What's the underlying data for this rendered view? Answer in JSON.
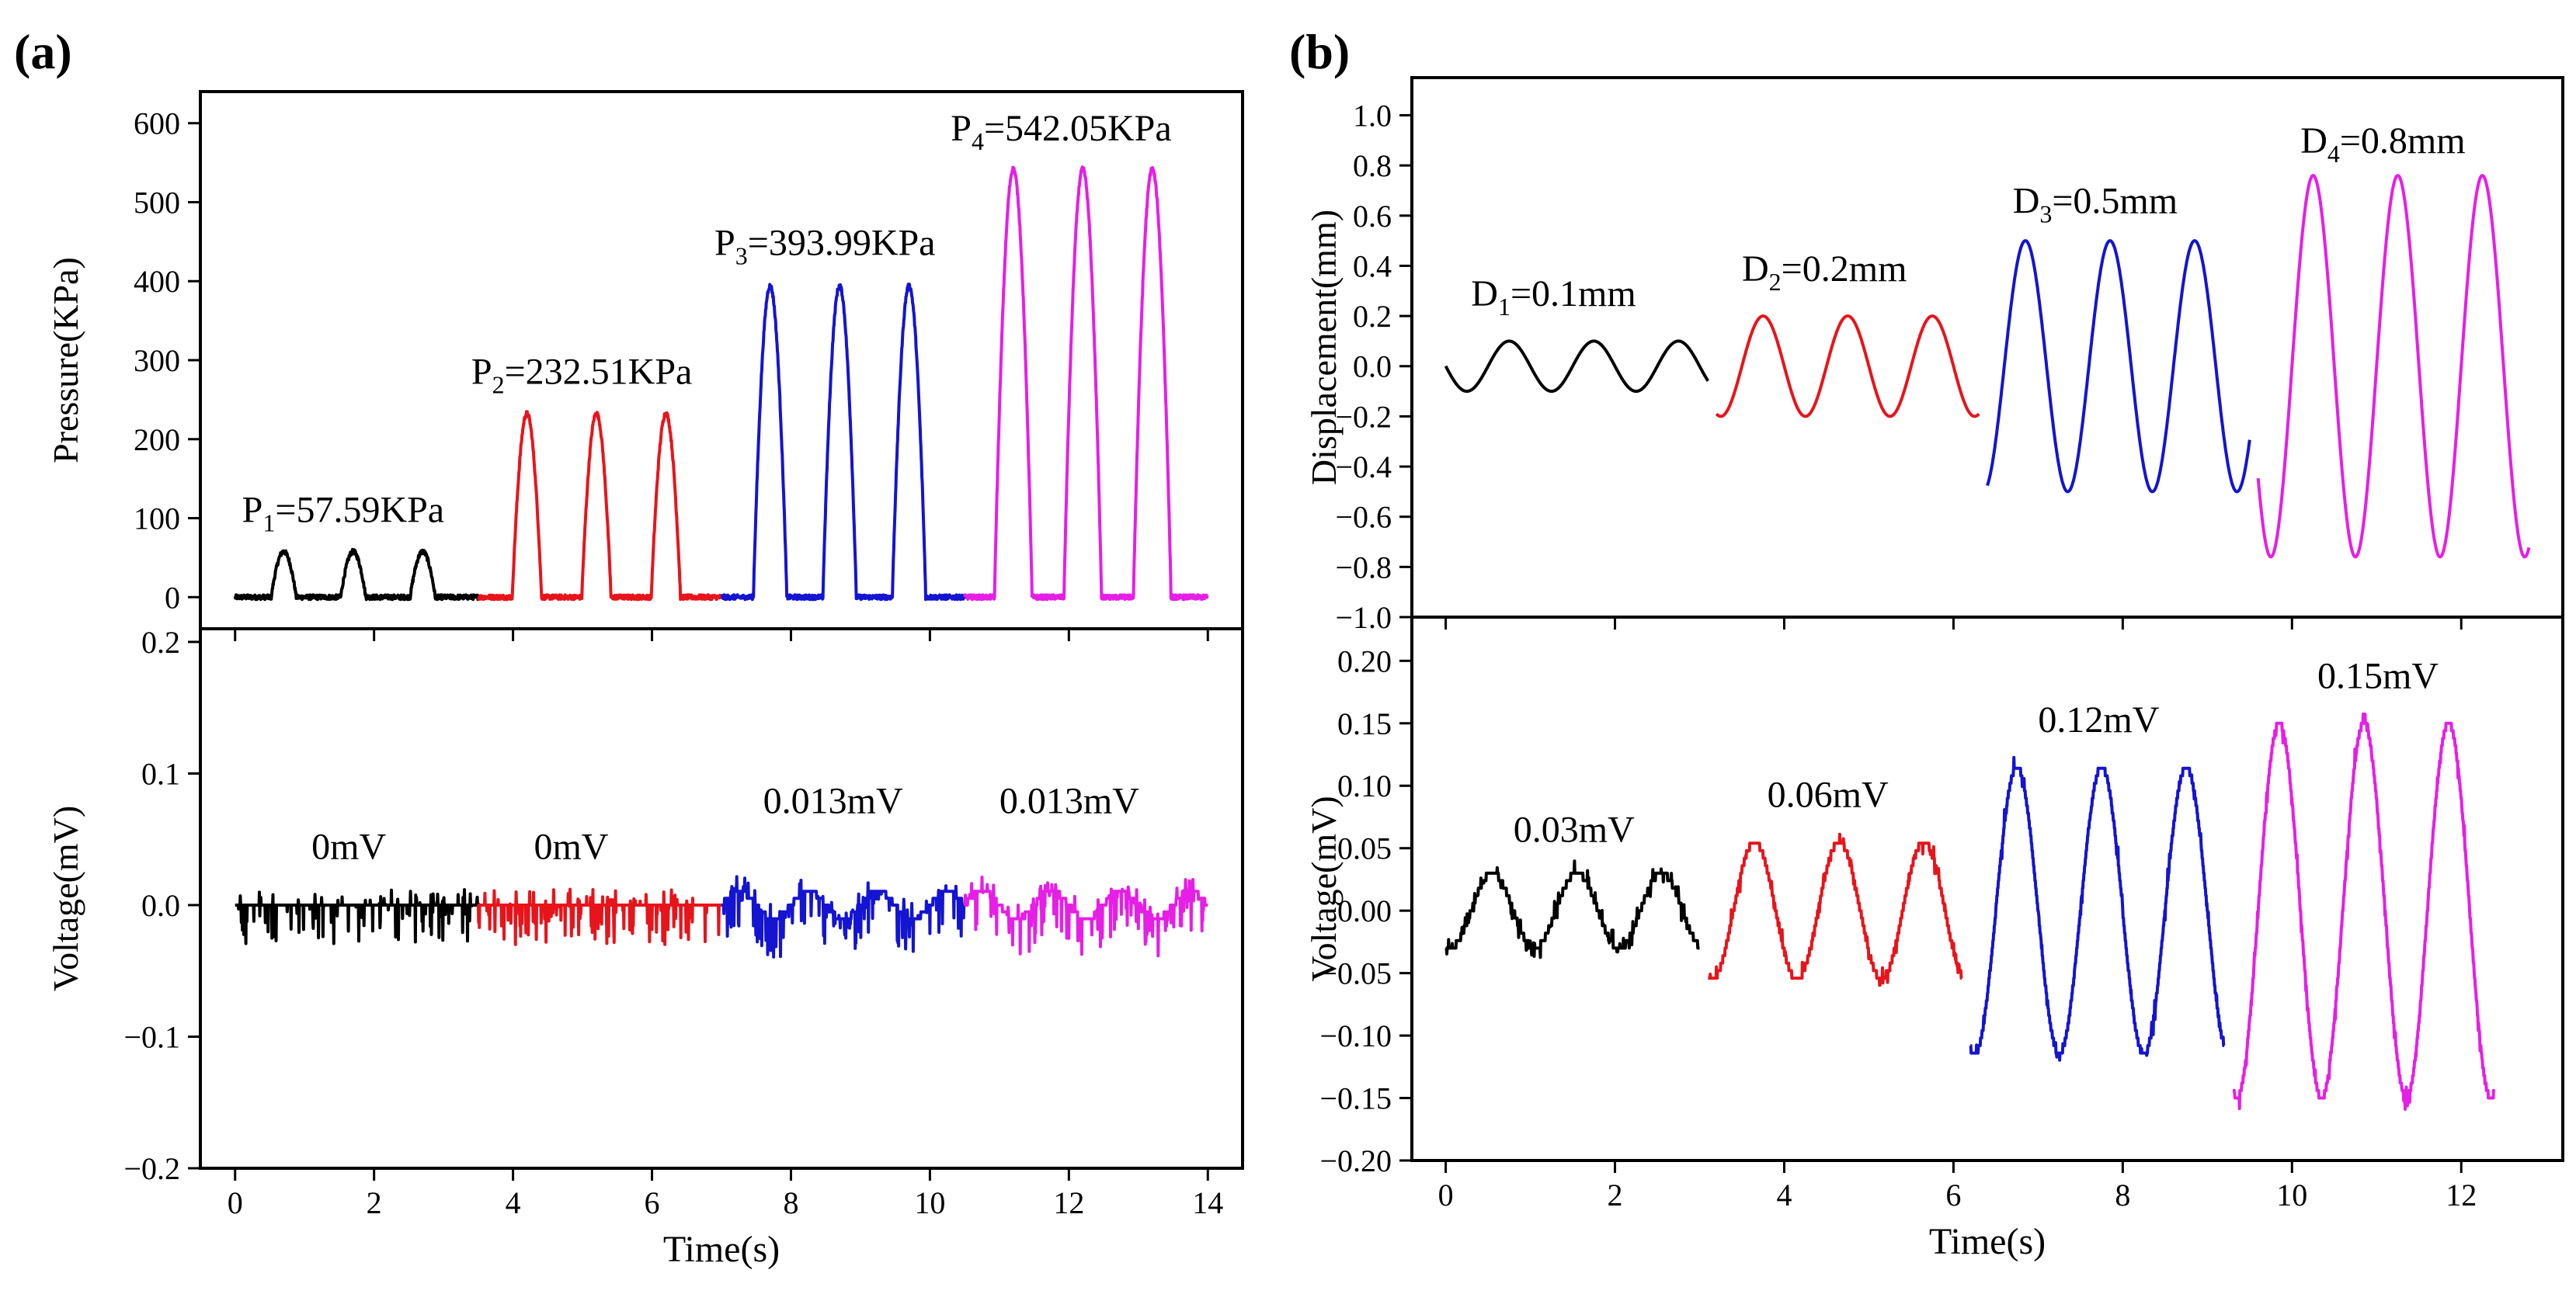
{
  "figure": {
    "panel_a_label": "(a)",
    "panel_b_label": "(b)"
  },
  "colors": {
    "segment1": "#000000",
    "segment2": "#e8141b",
    "segment3": "#1414d2",
    "segment4": "#e61ee6"
  },
  "chart_data": [
    {
      "id": "a_top",
      "type": "line",
      "title": "",
      "xlabel": "",
      "ylabel": "Pressure(KPa)",
      "xlim": [
        -0.5,
        14.5
      ],
      "ylim": [
        -40,
        640
      ],
      "xticks": [
        0,
        2,
        4,
        6,
        8,
        10,
        12,
        14
      ],
      "xtick_labels": [],
      "yticks": [
        0,
        100,
        200,
        300,
        400,
        500,
        600
      ],
      "ytick_labels": [
        "0",
        "100",
        "200",
        "300",
        "400",
        "500",
        "600"
      ],
      "grid": false,
      "segments": [
        {
          "x_range": [
            0,
            3.5
          ],
          "peaks": [
            0.7,
            1.7,
            2.7
          ],
          "peak_value": 57.59
        },
        {
          "x_range": [
            3.5,
            7.0
          ],
          "peaks": [
            4.2,
            5.2,
            6.2
          ],
          "peak_value": 232.51
        },
        {
          "x_range": [
            7.0,
            10.5
          ],
          "peaks": [
            7.7,
            8.7,
            9.7
          ],
          "peak_value": 393.99
        },
        {
          "x_range": [
            10.5,
            14.0
          ],
          "peaks": [
            11.2,
            12.2,
            13.2
          ],
          "peak_value": 542.05
        }
      ],
      "annotations": [
        {
          "base": "P",
          "sub": "1",
          "text": "=57.59KPa",
          "x": 0.1,
          "y": 95
        },
        {
          "base": "P",
          "sub": "2",
          "text": "=232.51KPa",
          "x": 3.4,
          "y": 270
        },
        {
          "base": "P",
          "sub": "3",
          "text": "=393.99KPa",
          "x": 6.9,
          "y": 433
        },
        {
          "base": "P",
          "sub": "4",
          "text": "=542.05KPa",
          "x": 10.3,
          "y": 578
        }
      ]
    },
    {
      "id": "a_bottom",
      "type": "line",
      "title": "",
      "xlabel": "Time(s)",
      "ylabel": "Voltage(mV)",
      "xlim": [
        -0.5,
        14.5
      ],
      "ylim": [
        -0.2,
        0.21
      ],
      "xticks": [
        0,
        2,
        4,
        6,
        8,
        10,
        12,
        14
      ],
      "xtick_labels": [
        "0",
        "2",
        "4",
        "6",
        "8",
        "10",
        "12",
        "14"
      ],
      "yticks": [
        -0.2,
        -0.1,
        0.0,
        0.1,
        0.2
      ],
      "ytick_labels": [
        "−0.2",
        "−0.1",
        "0.0",
        "0.1",
        "0.2"
      ],
      "grid": false,
      "segments": [
        {
          "x_range": [
            0,
            3.5
          ],
          "amplitude": 0
        },
        {
          "x_range": [
            3.5,
            7.0
          ],
          "amplitude": 0
        },
        {
          "x_range": [
            7.0,
            10.5
          ],
          "amplitude": 0.013
        },
        {
          "x_range": [
            10.5,
            14.0
          ],
          "amplitude": 0.013
        }
      ],
      "annotations": [
        {
          "text": "0mV",
          "x": 1.1,
          "y": 0.035
        },
        {
          "text": "0mV",
          "x": 4.3,
          "y": 0.035
        },
        {
          "text": "0.013mV",
          "x": 7.6,
          "y": 0.07
        },
        {
          "text": "0.013mV",
          "x": 11.0,
          "y": 0.07
        }
      ]
    },
    {
      "id": "b_top",
      "type": "line",
      "title": "",
      "xlabel": "",
      "ylabel": "Displacement(mm)",
      "xlim": [
        -0.4,
        13.2
      ],
      "ylim": [
        -1.0,
        1.15
      ],
      "xticks": [
        0,
        2,
        4,
        6,
        8,
        10,
        12
      ],
      "xtick_labels": [],
      "yticks": [
        -1.0,
        -0.8,
        -0.6,
        -0.4,
        -0.2,
        0.0,
        0.2,
        0.4,
        0.6,
        0.8,
        1.0
      ],
      "ytick_labels": [
        "−1.0",
        "−0.8",
        "−0.6",
        "−0.4",
        "−0.2",
        "0.0",
        "0.2",
        "0.4",
        "0.6",
        "0.8",
        "1.0"
      ],
      "grid": false,
      "segments": [
        {
          "x_range": [
            0,
            3.1
          ],
          "amplitude": 0.1,
          "period": 1.0,
          "phase": -0.25
        },
        {
          "x_range": [
            3.2,
            6.3
          ],
          "amplitude": 0.2,
          "period": 1.0,
          "phase": -0.05
        },
        {
          "x_range": [
            6.4,
            9.5
          ],
          "amplitude": 0.5,
          "period": 1.0,
          "phase": 0.05
        },
        {
          "x_range": [
            9.6,
            12.8
          ],
          "amplitude": 0.76,
          "period": 1.0,
          "phase": -0.15
        }
      ],
      "annotations": [
        {
          "base": "D",
          "sub": "1",
          "text": "=0.1mm",
          "x": 0.3,
          "y": 0.24
        },
        {
          "base": "D",
          "sub": "2",
          "text": "=0.2mm",
          "x": 3.5,
          "y": 0.34
        },
        {
          "base": "D",
          "sub": "3",
          "text": "=0.5mm",
          "x": 6.7,
          "y": 0.61
        },
        {
          "base": "D",
          "sub": "4",
          "text": "=0.8mm",
          "x": 10.1,
          "y": 0.85
        }
      ]
    },
    {
      "id": "b_bottom",
      "type": "line",
      "title": "",
      "xlabel": "Time(s)",
      "ylabel": "Voltage(mV)",
      "xlim": [
        -0.4,
        13.2
      ],
      "ylim": [
        -0.2,
        0.235
      ],
      "xticks": [
        0,
        2,
        4,
        6,
        8,
        10,
        12
      ],
      "xtick_labels": [
        "0",
        "2",
        "4",
        "6",
        "8",
        "10",
        "12"
      ],
      "yticks": [
        -0.2,
        -0.15,
        -0.1,
        -0.05,
        0.0,
        0.05,
        0.1,
        0.15,
        0.2
      ],
      "ytick_labels": [
        "−0.20",
        "−0.15",
        "−0.10",
        "−0.05",
        "0.00",
        "0.05",
        "0.10",
        "0.15",
        "0.20"
      ],
      "grid": false,
      "segments": [
        {
          "x_range": [
            0,
            3.0
          ],
          "amplitude": 0.03,
          "period": 1.0,
          "phase": -0.05
        },
        {
          "x_range": [
            3.1,
            6.1
          ],
          "amplitude": 0.055,
          "period": 1.0,
          "phase": -0.05
        },
        {
          "x_range": [
            6.2,
            9.2
          ],
          "amplitude": 0.115,
          "period": 1.0,
          "phase": -0.05
        },
        {
          "x_range": [
            9.3,
            12.4
          ],
          "amplitude": 0.15,
          "period": 1.0,
          "phase": -0.05
        }
      ],
      "annotations": [
        {
          "text": "0.03mV",
          "x": 0.8,
          "y": 0.055
        },
        {
          "text": "0.06mV",
          "x": 3.8,
          "y": 0.083
        },
        {
          "text": "0.12mV",
          "x": 7.0,
          "y": 0.143
        },
        {
          "text": "0.15mV",
          "x": 10.3,
          "y": 0.178
        }
      ]
    }
  ]
}
